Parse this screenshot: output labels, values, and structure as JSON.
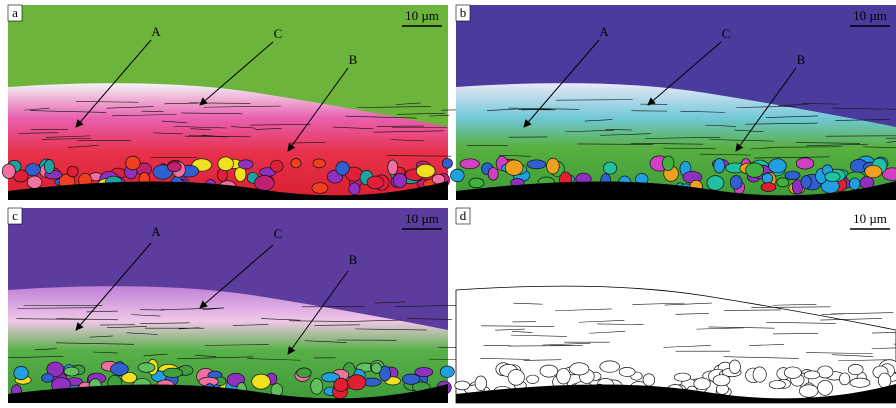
{
  "panels": [
    {
      "label": "a",
      "scale": "10 µm",
      "annotations": [
        "A",
        "C",
        "B"
      ]
    },
    {
      "label": "b",
      "scale": "10 µm",
      "annotations": [
        "A",
        "C",
        "B"
      ]
    },
    {
      "label": "c",
      "scale": "10 µm",
      "annotations": [
        "A",
        "C",
        "B"
      ]
    },
    {
      "label": "d",
      "scale": "10 µm",
      "annotations": []
    }
  ]
}
